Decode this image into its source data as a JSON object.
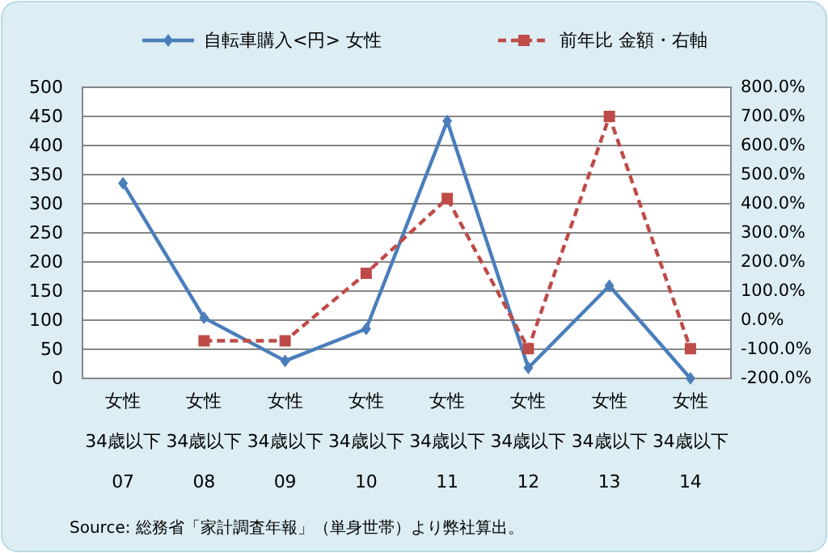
{
  "chart_data": {
    "type": "line",
    "categories": [
      "女性\n34歳以下\n07",
      "女性\n34歳以下\n08",
      "女性\n34歳以下\n09",
      "女性\n34歳以下\n10",
      "女性\n34歳以下\n11",
      "女性\n34歳以下\n12",
      "女性\n34歳以下\n13",
      "女性\n34歳以下\n14"
    ],
    "series": [
      {
        "name": "自転車購入<円> 女性",
        "color": "#4a7ebb",
        "marker": "diamond",
        "line_style": "solid",
        "values": [
          335,
          104,
          30,
          85,
          442,
          18,
          159,
          0
        ]
      },
      {
        "name": "前年比 金額・右軸",
        "color": "#be4b48",
        "marker": "square",
        "line_style": "dashed",
        "axis": "y2",
        "values": [
          null,
          -71,
          -71,
          161,
          418,
          -98,
          700,
          -98
        ]
      }
    ],
    "ylim": [
      0,
      500
    ],
    "yticks": [
      0,
      50,
      100,
      150,
      200,
      250,
      300,
      350,
      400,
      450,
      500
    ],
    "y2lim": [
      -200,
      800
    ],
    "y2ticks": [
      {
        "value": -200,
        "label": "-200.0%"
      },
      {
        "value": -100,
        "label": "-100.0%"
      },
      {
        "value": 0,
        "label": "0.0%"
      },
      {
        "value": 100,
        "label": "100.0%"
      },
      {
        "value": 200,
        "label": "200.0%"
      },
      {
        "value": 300,
        "label": "300.0%"
      },
      {
        "value": 400,
        "label": "400.0%"
      },
      {
        "value": 500,
        "label": "500.0%"
      },
      {
        "value": 600,
        "label": "600.0%"
      },
      {
        "value": 700,
        "label": "700.0%"
      },
      {
        "value": 800,
        "label": "800.0%"
      }
    ],
    "grid": "y",
    "legend": "top",
    "annotations": [
      "Source: 総務省「家計調査年報」（単身世帯）より弊社算出。"
    ]
  }
}
